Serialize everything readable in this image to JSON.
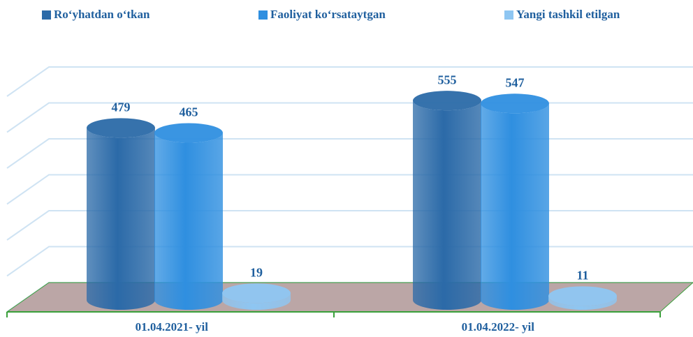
{
  "chart_data": {
    "type": "bar",
    "categories": [
      "01.04.2021- yil",
      "01.04.2022- yil"
    ],
    "series": [
      {
        "name": "Ro‘yhatdan o‘tkan",
        "color": "#2b6aa8",
        "values": [
          479,
          555
        ]
      },
      {
        "name": "Faoliyat ko‘rsataytgan",
        "color": "#2f8fe0",
        "values": [
          465,
          547
        ]
      },
      {
        "name": "Yangi tashkil etilgan",
        "color": "#8ec6f2",
        "values": [
          19,
          11
        ]
      }
    ],
    "ylim": [
      0,
      600
    ],
    "yticks": [
      0,
      100,
      200,
      300,
      400,
      500,
      600
    ],
    "grid": true
  }
}
